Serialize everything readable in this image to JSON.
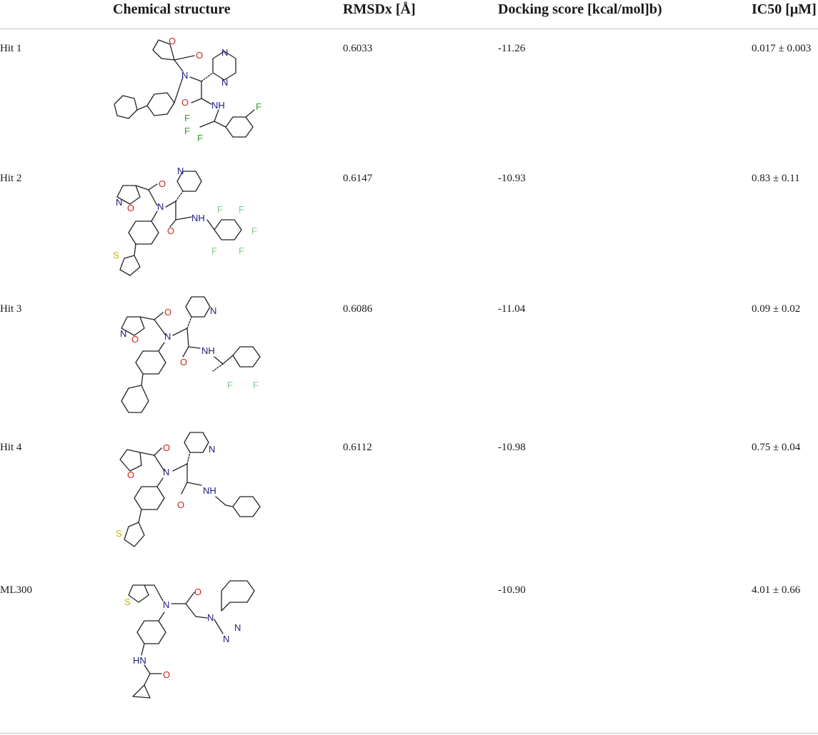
{
  "table": {
    "headers": {
      "structure": "Chemical structure",
      "rmsd": "RMSDx [Å]",
      "docking": "Docking score [kcal/mol]b)",
      "ic50": "IC50 [μM]"
    },
    "rows": [
      {
        "name": "Hit 1",
        "structure_icon": "hit-1-molecule",
        "rmsd": "0.6033",
        "docking": "-11.26",
        "ic50": "0.017 ± 0.003"
      },
      {
        "name": "Hit 2",
        "structure_icon": "hit-2-molecule",
        "rmsd": "0.6147",
        "docking": "-10.93",
        "ic50": "0.83 ± 0.11"
      },
      {
        "name": "Hit 3",
        "structure_icon": "hit-3-molecule",
        "rmsd": "0.6086",
        "docking": "-11.04",
        "ic50": "0.09 ± 0.02"
      },
      {
        "name": "Hit 4",
        "structure_icon": "hit-4-molecule",
        "rmsd": "0.6112",
        "docking": "-10.98",
        "ic50": "0.75 ± 0.04"
      },
      {
        "name": "ML300",
        "structure_icon": "ml300-molecule",
        "rmsd": "",
        "docking": "-10.90",
        "ic50": "4.01 ± 0.66"
      }
    ]
  },
  "atom_colors": {
    "N": "#1c1a7a",
    "O": "#c8281e",
    "F": "#2f9e2f",
    "S": "#c9b400"
  }
}
